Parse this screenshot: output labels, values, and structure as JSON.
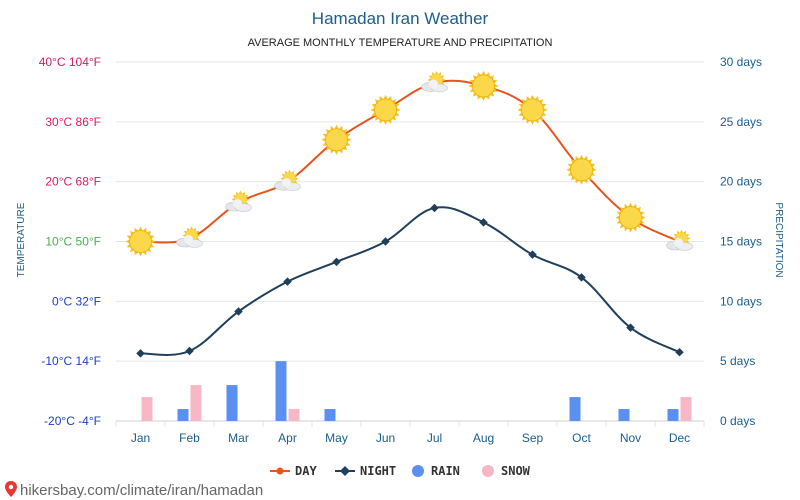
{
  "header": {
    "title": "Hamadan Iran Weather",
    "subtitle": "AVERAGE MONTHLY TEMPERATURE AND PRECIPITATION"
  },
  "footer": {
    "source": "hikersbay.com/climate/iran/hamadan"
  },
  "colors": {
    "day": "#e8541e",
    "night": "#1f3f5a",
    "rain": "#5b8ff2",
    "snow": "#f8b7c4",
    "warm_tick": "#d81b60",
    "mild_tick": "#4caf50",
    "cold_tick": "#1e40c0",
    "grid": "#e6e6e6",
    "title": "#1b5e8c"
  },
  "chart_data": {
    "type": "line",
    "title": "Hamadan Iran Weather",
    "subtitle": "AVERAGE MONTHLY TEMPERATURE AND PRECIPITATION",
    "ylabel": "TEMPERATURE",
    "y2label": "PRECIPITATION",
    "categories": [
      "Jan",
      "Feb",
      "Mar",
      "Apr",
      "May",
      "Jun",
      "Jul",
      "Aug",
      "Sep",
      "Oct",
      "Nov",
      "Dec"
    ],
    "ylim": [
      -20,
      40
    ],
    "y2lim": [
      0,
      30
    ],
    "yticks": [
      {
        "value": 40,
        "label": "40°C 104°F",
        "color": "warm"
      },
      {
        "value": 30,
        "label": "30°C 86°F",
        "color": "warm"
      },
      {
        "value": 20,
        "label": "20°C 68°F",
        "color": "warm"
      },
      {
        "value": 10,
        "label": "10°C 50°F",
        "color": "mild"
      },
      {
        "value": 0,
        "label": "0°C 32°F",
        "color": "cold"
      },
      {
        "value": -10,
        "label": "-10°C 14°F",
        "color": "cold"
      },
      {
        "value": -20,
        "label": "-20°C -4°F",
        "color": "cold"
      }
    ],
    "y2ticks": [
      {
        "value": 30,
        "label": "30 days"
      },
      {
        "value": 25,
        "label": "25 days"
      },
      {
        "value": 20,
        "label": "20 days"
      },
      {
        "value": 15,
        "label": "15 days"
      },
      {
        "value": 10,
        "label": "10 days"
      },
      {
        "value": 5,
        "label": "5 days"
      },
      {
        "value": 0,
        "label": "0 days"
      }
    ],
    "series": [
      {
        "name": "DAY",
        "type": "line",
        "axis": "temperature",
        "values": [
          10,
          10.5,
          16.5,
          20,
          27,
          32,
          36.5,
          36,
          32,
          22,
          14,
          10
        ],
        "icons": [
          "sun",
          "partly-cloudy",
          "partly-cloudy",
          "partly-cloudy",
          "sun",
          "sun",
          "partly-cloudy",
          "sun",
          "sun",
          "sun",
          "sun",
          "partly-cloudy"
        ]
      },
      {
        "name": "NIGHT",
        "type": "line",
        "axis": "temperature",
        "values": [
          -8.7,
          -8.3,
          -1.7,
          3.3,
          6.6,
          10,
          15.6,
          13.2,
          7.8,
          4,
          -4.4,
          -8.5
        ]
      },
      {
        "name": "RAIN",
        "type": "bar",
        "axis": "precipitation",
        "values": [
          0,
          1,
          3,
          5,
          1,
          0,
          0,
          0,
          0,
          2,
          1,
          1
        ]
      },
      {
        "name": "SNOW",
        "type": "bar",
        "axis": "precipitation",
        "values": [
          2,
          3,
          0,
          1,
          0,
          0,
          0,
          0,
          0,
          0,
          0,
          2
        ]
      }
    ],
    "grid": true,
    "legend_position": "bottom-center"
  }
}
